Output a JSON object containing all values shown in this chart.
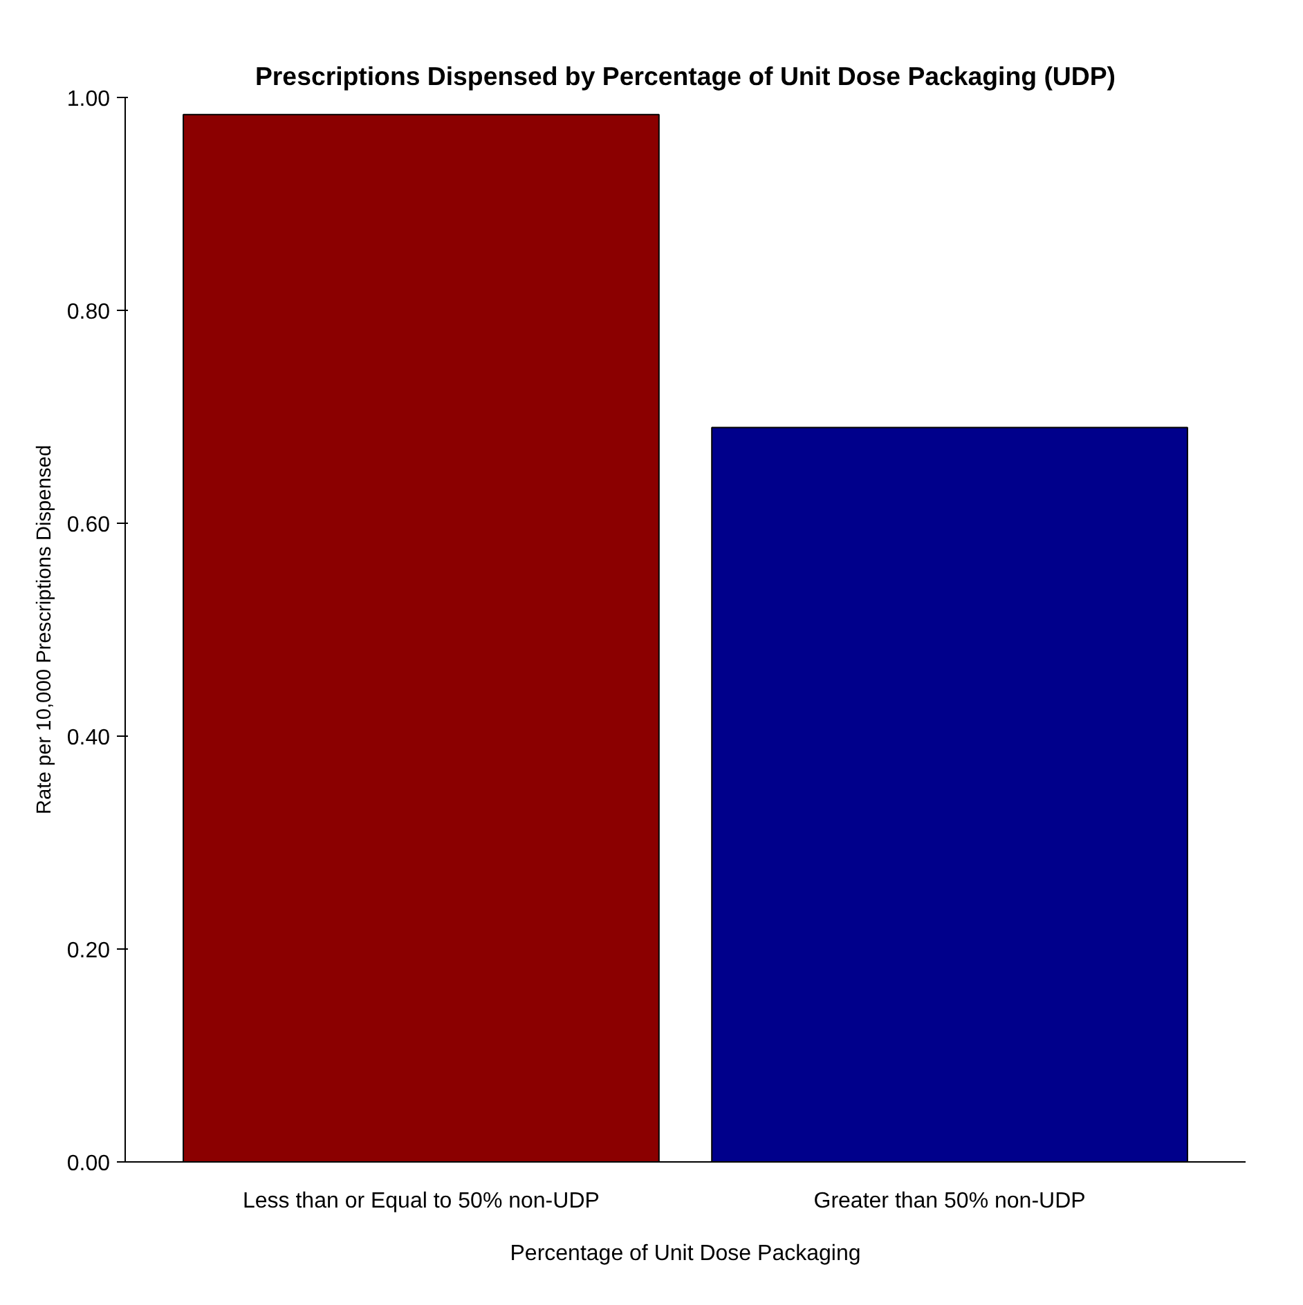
{
  "chart_data": {
    "type": "bar",
    "title": "Prescriptions Dispensed by Percentage of Unit Dose Packaging (UDP)",
    "xlabel": "Percentage of Unit Dose Packaging",
    "ylabel": "Rate per 10,000 Prescriptions Dispensed",
    "categories": [
      "Less than or Equal to 50% non-UDP",
      "Greater than 50% non-UDP"
    ],
    "values": [
      0.984,
      0.69
    ],
    "colors": [
      "#8b0000",
      "#00008b"
    ],
    "ylim": [
      0,
      1
    ],
    "yticks": [
      {
        "value": 0,
        "label": "0.00"
      },
      {
        "value": 0.2,
        "label": "0.20"
      },
      {
        "value": 0.4,
        "label": "0.40"
      },
      {
        "value": 0.6,
        "label": "0.60"
      },
      {
        "value": 0.8,
        "label": "0.80"
      },
      {
        "value": 1,
        "label": "1.00"
      }
    ],
    "grid": false
  }
}
